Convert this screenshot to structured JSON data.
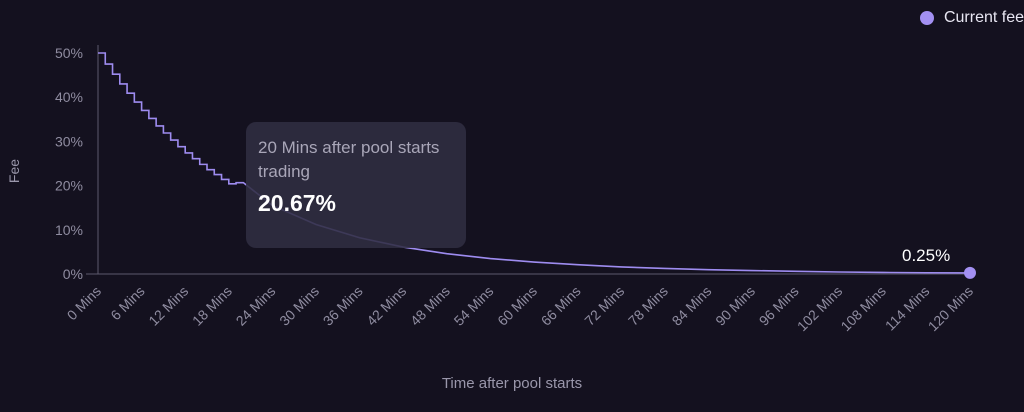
{
  "legend": {
    "label": "Current fee"
  },
  "tooltip": {
    "title": "20 Mins after pool starts trading",
    "value": "20.67%"
  },
  "end_label": "0.25%",
  "chart_data": {
    "type": "line",
    "xlabel": "Time after pool starts",
    "ylabel": "Fee",
    "xlim": [
      0,
      120
    ],
    "ylim": [
      0,
      50
    ],
    "x_ticks": [
      "0 Mins",
      "6 Mins",
      "12 Mins",
      "18 Mins",
      "24 Mins",
      "30 Mins",
      "36 Mins",
      "42 Mins",
      "48 Mins",
      "54 Mins",
      "60 Mins",
      "66 Mins",
      "72 Mins",
      "78 Mins",
      "84 Mins",
      "90 Mins",
      "96 Mins",
      "102 Mins",
      "108 Mins",
      "114 Mins",
      "120 Mins"
    ],
    "y_ticks": [
      "0%",
      "10%",
      "20%",
      "30%",
      "40%",
      "50%"
    ],
    "series": [
      {
        "name": "Current fee",
        "color": "#9e8cf0",
        "x": [
          0,
          1,
          2,
          3,
          4,
          5,
          6,
          7,
          8,
          9,
          10,
          11,
          12,
          13,
          14,
          15,
          16,
          17,
          18,
          19,
          20,
          24,
          30,
          36,
          42,
          48,
          54,
          60,
          66,
          72,
          78,
          84,
          90,
          96,
          102,
          108,
          114,
          120
        ],
        "y": [
          50,
          47.5,
          45.2,
          43.0,
          40.9,
          38.9,
          37.0,
          35.2,
          33.5,
          31.9,
          30.3,
          28.8,
          27.4,
          26.1,
          24.8,
          23.6,
          22.5,
          21.4,
          20.4,
          20.67,
          20.67,
          15.5,
          11.2,
          8.2,
          6.1,
          4.6,
          3.5,
          2.7,
          2.1,
          1.6,
          1.25,
          0.98,
          0.78,
          0.6,
          0.45,
          0.35,
          0.28,
          0.25
        ]
      }
    ],
    "highlight": {
      "x": 120,
      "y": 0.25
    },
    "grid": false,
    "legend_position": "top-right"
  }
}
